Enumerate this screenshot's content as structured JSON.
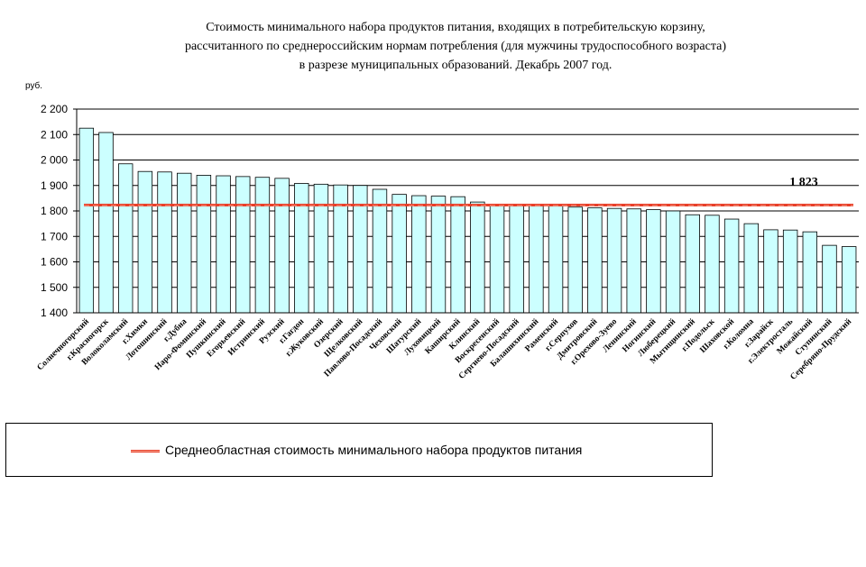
{
  "chart_data": {
    "type": "bar",
    "title_lines": [
      "Стоимость минимального набора продуктов питания, входящих  в потребительскую корзину,",
      "рассчитанного по среднероссийским нормам потребления (для мужчины трудоспособного возраста)",
      "в разрезе муниципальных образований.  Декабрь  2007 год."
    ],
    "ylabel": "руб.",
    "ylim": [
      1400,
      2200
    ],
    "yticks": [
      "1 400",
      "1 500",
      "1 600",
      "1 700",
      "1 800",
      "1 900",
      "2 000",
      "2 100",
      "2 200"
    ],
    "ytick_values": [
      1400,
      1500,
      1600,
      1700,
      1800,
      1900,
      2000,
      2100,
      2200
    ],
    "grid": true,
    "bar_color": "#ccffff",
    "line_color": "#e8402a",
    "categories": [
      "Солнечногорский",
      "г.Красногорск",
      "Волоколамский",
      "г.Химки",
      "Лотошинский",
      "г.Дубна",
      "Наро-Фоминский",
      "Пушкинский",
      "Егорьевский",
      "Истринский",
      "Рузский",
      "г.Гагдон",
      "г.Жуковский",
      "Озерский",
      "Щелковский",
      "Павлово-Посадский",
      "Чеховский",
      "Шатурский",
      "Луховицкий",
      "Каширский",
      "Клинский",
      "Воскресенский",
      "Сергиево-Посадский",
      "Балашихинский",
      "Раменский",
      "г.Серпухов",
      "Дмитровский",
      "г.Орехово-Зуево",
      "Ленинский",
      "Ногинский",
      "Люберецкий",
      "Мытищинский",
      "г.Подольск",
      "Шаховской",
      "г.Коломна",
      "г.Зарайск",
      "г.Электросталь",
      "Можайский",
      "Ступинский",
      "Серебряно-Прудский"
    ],
    "values": [
      2125,
      2108,
      1985,
      1955,
      1953,
      1948,
      1940,
      1938,
      1935,
      1932,
      1928,
      1908,
      1905,
      1902,
      1900,
      1885,
      1865,
      1860,
      1858,
      1856,
      1835,
      1825,
      1823,
      1822,
      1820,
      1815,
      1812,
      1810,
      1808,
      1805,
      1800,
      1785,
      1783,
      1768,
      1750,
      1726,
      1725,
      1718,
      1665,
      1660
    ],
    "average": {
      "name": "Среднеобластная стоимость минимального набора продуктов питания",
      "value": 1823,
      "label": "1 823"
    },
    "legend_placement": "bottom"
  }
}
